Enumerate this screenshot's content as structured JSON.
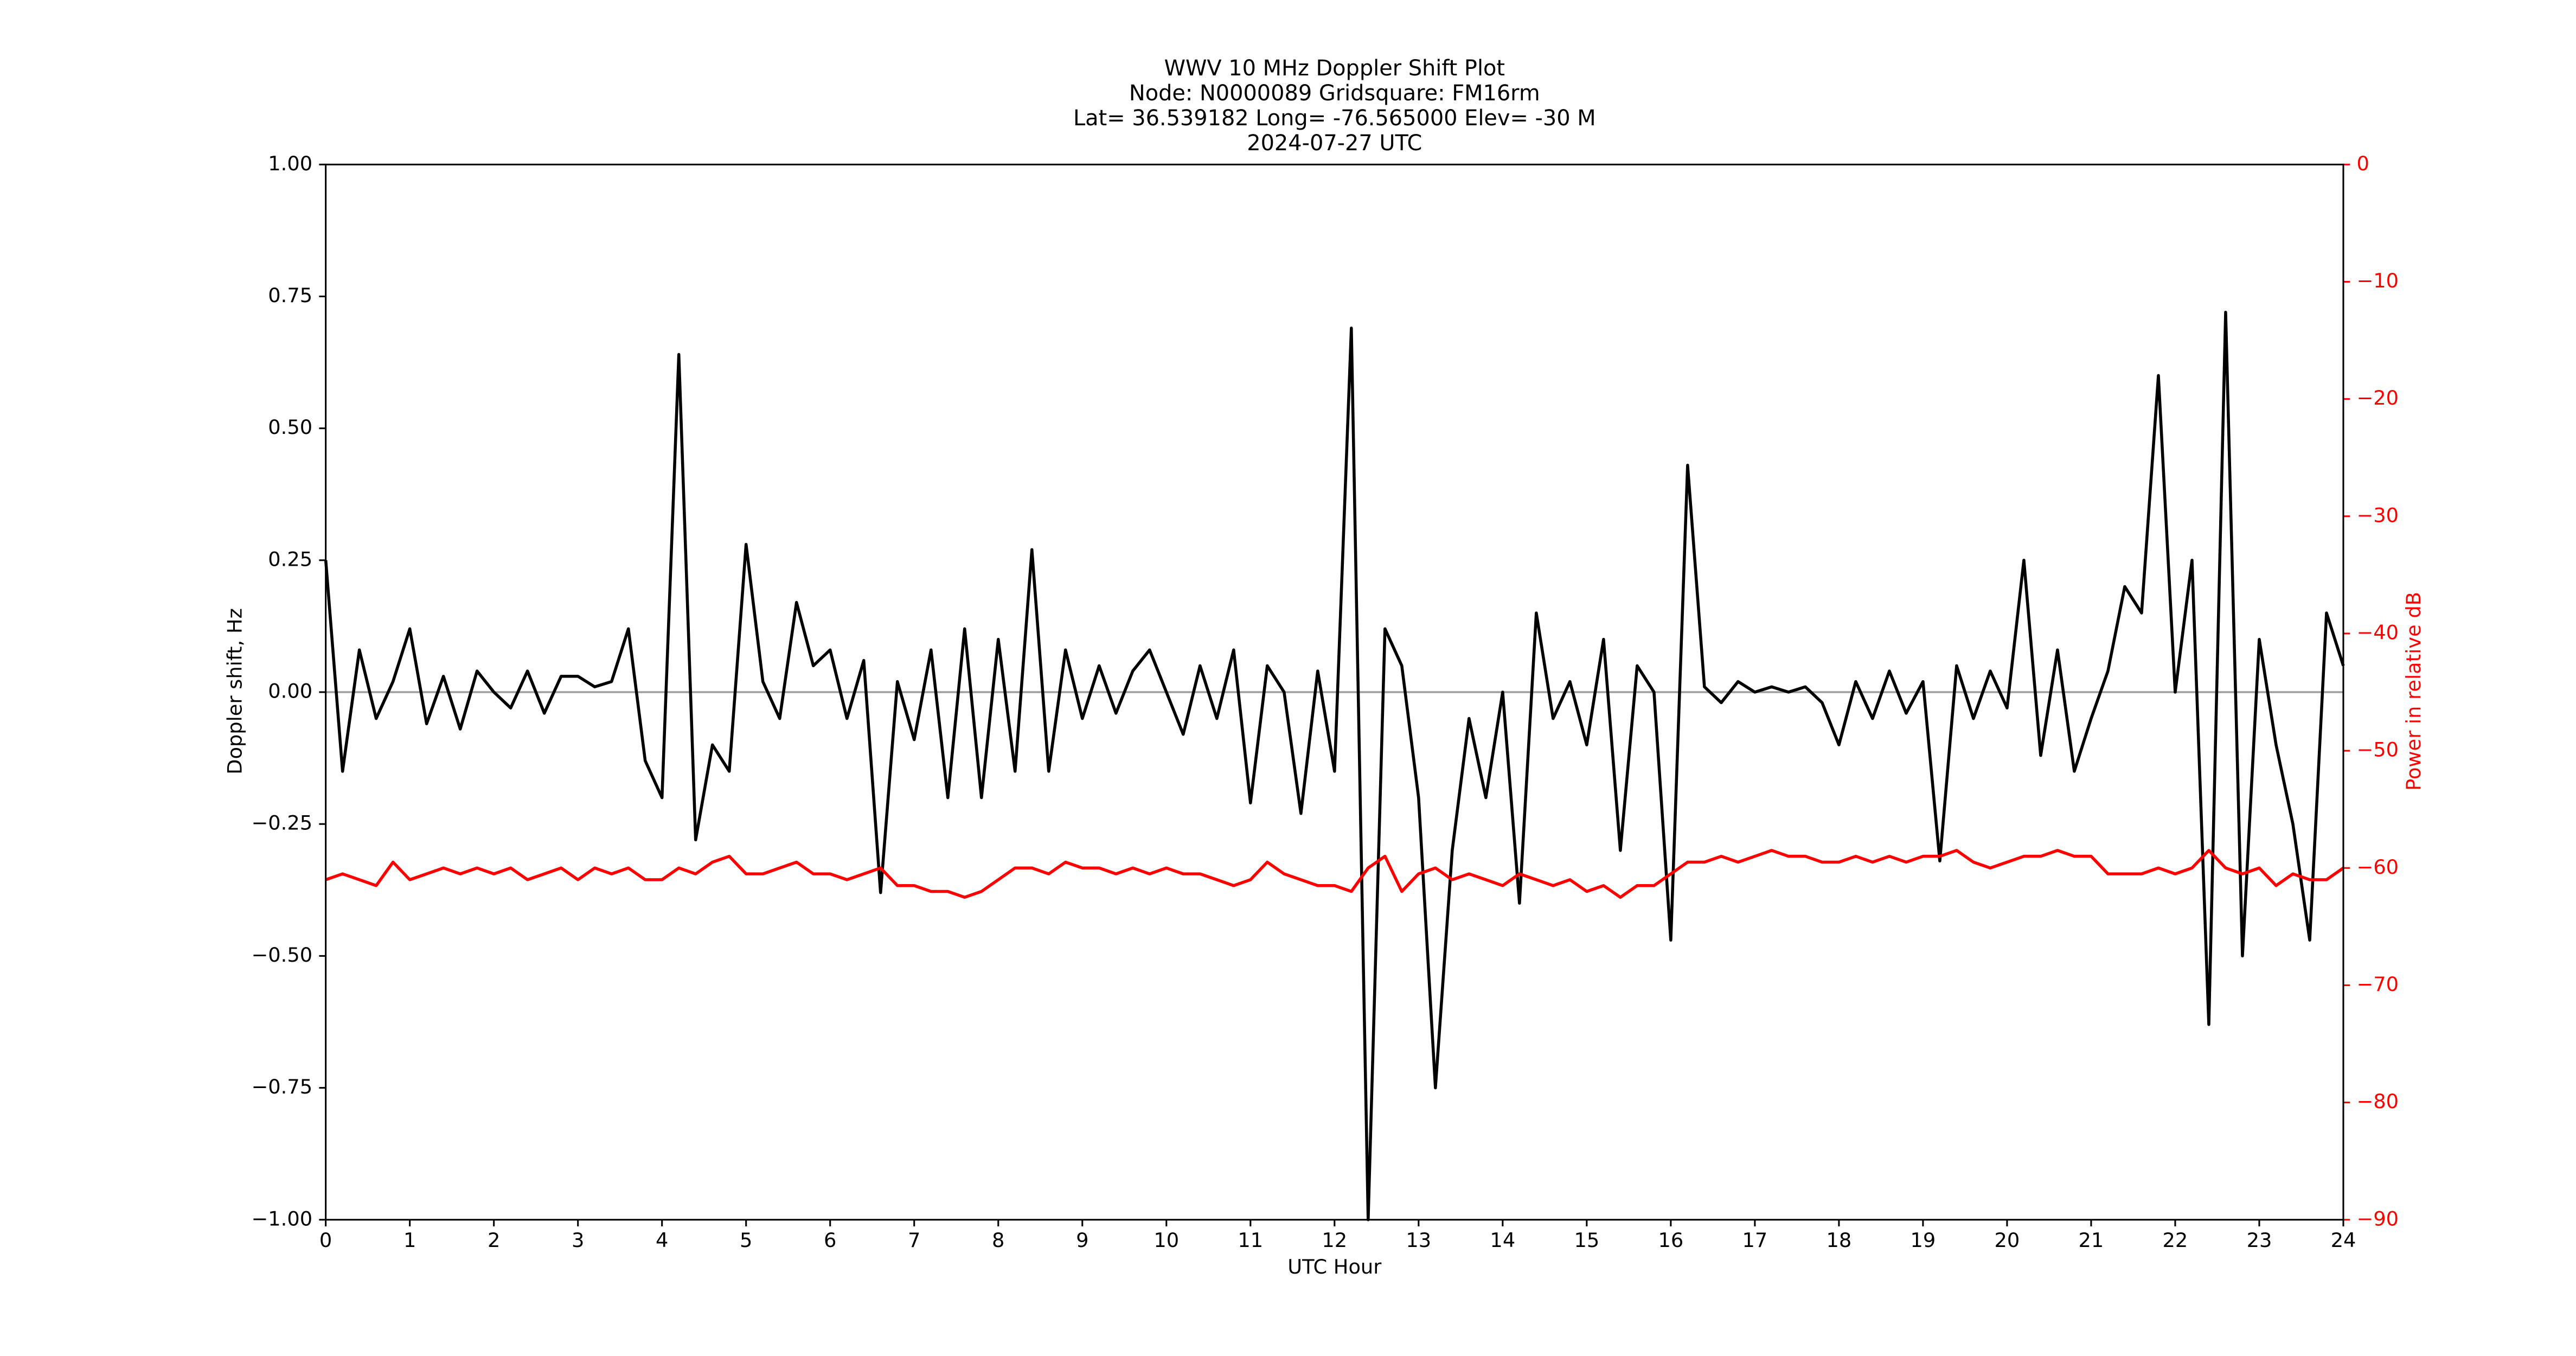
{
  "chart_data": {
    "type": "line",
    "title": [
      "WWV 10 MHz Doppler Shift Plot",
      "Node:  N0000089     Gridsquare:  FM16rm",
      "Lat= 36.539182    Long= -76.565000    Elev= -30 M",
      "2024-07-27  UTC"
    ],
    "xlabel": "UTC Hour",
    "ylabel": "Doppler shift, Hz",
    "y2label": "Power in relative dB",
    "xlim": [
      0,
      24
    ],
    "ylim": [
      -1,
      1
    ],
    "y2lim": [
      -90,
      0
    ],
    "xticks": [
      0,
      1,
      2,
      3,
      4,
      5,
      6,
      7,
      8,
      9,
      10,
      11,
      12,
      13,
      14,
      15,
      16,
      17,
      18,
      19,
      20,
      21,
      22,
      23,
      24
    ],
    "yticks": [
      {
        "value": -1,
        "label": "−1.00"
      },
      {
        "value": -0.75,
        "label": "−0.75"
      },
      {
        "value": -0.5,
        "label": "−0.50"
      },
      {
        "value": -0.25,
        "label": "−0.25"
      },
      {
        "value": 0,
        "label": "0.00"
      },
      {
        "value": 0.25,
        "label": "0.25"
      },
      {
        "value": 0.5,
        "label": "0.50"
      },
      {
        "value": 0.75,
        "label": "0.75"
      },
      {
        "value": 1,
        "label": "1.00"
      }
    ],
    "y2ticks": [
      0,
      {
        "value": -10,
        "label": "−10"
      },
      {
        "value": -20,
        "label": "−20"
      },
      {
        "value": -30,
        "label": "−30"
      },
      {
        "value": -40,
        "label": "−40"
      },
      {
        "value": -50,
        "label": "−50"
      },
      {
        "value": -60,
        "label": "−60"
      },
      {
        "value": -70,
        "label": "−70"
      },
      {
        "value": -80,
        "label": "−80"
      },
      {
        "value": -90,
        "label": "−90"
      }
    ],
    "hline": 0,
    "hline_color": "#a0a0a0",
    "y2_color": "#ff0000",
    "x": [
      0,
      0.2,
      0.4,
      0.6,
      0.8,
      1,
      1.2,
      1.4,
      1.6,
      1.8,
      2,
      2.2,
      2.4,
      2.6,
      2.8,
      3,
      3.2,
      3.4,
      3.6,
      3.8,
      4,
      4.2,
      4.4,
      4.6,
      4.8,
      5,
      5.2,
      5.4,
      5.6,
      5.8,
      6,
      6.2,
      6.4,
      6.6,
      6.8,
      7,
      7.2,
      7.4,
      7.6,
      7.8,
      8,
      8.2,
      8.4,
      8.6,
      8.8,
      9,
      9.2,
      9.4,
      9.6,
      9.8,
      10,
      10.2,
      10.4,
      10.6,
      10.8,
      11,
      11.2,
      11.4,
      11.6,
      11.8,
      12,
      12.2,
      12.4,
      12.6,
      12.8,
      13,
      13.2,
      13.4,
      13.6,
      13.8,
      14,
      14.2,
      14.4,
      14.6,
      14.8,
      15,
      15.2,
      15.4,
      15.6,
      15.8,
      16,
      16.2,
      16.4,
      16.6,
      16.8,
      17,
      17.2,
      17.4,
      17.6,
      17.8,
      18,
      18.2,
      18.4,
      18.6,
      18.8,
      19,
      19.2,
      19.4,
      19.6,
      19.8,
      20,
      20.2,
      20.4,
      20.6,
      20.8,
      21,
      21.2,
      21.4,
      21.6,
      21.8,
      22,
      22.2,
      22.4,
      22.6,
      22.8,
      23,
      23.2,
      23.4,
      23.6,
      23.8,
      24
    ],
    "series": [
      {
        "color": "#000000",
        "values": [
          0.25,
          -0.15,
          0.08,
          -0.05,
          0.02,
          0.12,
          -0.06,
          0.03,
          -0.07,
          0.04,
          0,
          -0.03,
          0.04,
          -0.04,
          0.03,
          0.03,
          0.01,
          0.02,
          0.12,
          -0.13,
          -0.2,
          0.64,
          -0.28,
          -0.1,
          -0.15,
          0.28,
          0.02,
          -0.05,
          0.17,
          0.05,
          0.08,
          -0.05,
          0.06,
          -0.38,
          0.02,
          -0.09,
          0.08,
          -0.2,
          0.12,
          -0.2,
          0.1,
          -0.15,
          0.27,
          -0.15,
          0.08,
          -0.05,
          0.05,
          -0.04,
          0.04,
          0.08,
          0,
          -0.08,
          0.05,
          -0.05,
          0.08,
          -0.21,
          0.05,
          0,
          -0.23,
          0.04,
          -0.15,
          0.69,
          -1,
          0.12,
          0.05,
          -0.2,
          -0.75,
          -0.3,
          -0.05,
          -0.2,
          0,
          -0.4,
          0.15,
          -0.05,
          0.02,
          -0.1,
          0.1,
          -0.3,
          0.05,
          0,
          -0.47,
          0.43,
          0.01,
          -0.02,
          0.02,
          0,
          0.01,
          0,
          0.01,
          -0.02,
          -0.1,
          0.02,
          -0.05,
          0.04,
          -0.04,
          0.02,
          -0.32,
          0.05,
          -0.05,
          0.04,
          -0.03,
          0.25,
          -0.12,
          0.08,
          -0.15,
          -0.05,
          0.04,
          0.2,
          0.15,
          0.6,
          0,
          0.25,
          -0.63,
          0.72,
          -0.5,
          0.1,
          -0.1,
          -0.25,
          -0.47,
          0.15,
          0.05
        ]
      },
      {
        "color": "#ff0000",
        "axis": "y2",
        "values": [
          -61,
          -60.5,
          -61,
          -61.5,
          -59.5,
          -61,
          -60.5,
          -60,
          -60.5,
          -60,
          -60.5,
          -60,
          -61,
          -60.5,
          -60,
          -61,
          -60,
          -60.5,
          -60,
          -61,
          -61,
          -60,
          -60.5,
          -59.5,
          -59,
          -60.5,
          -60.5,
          -60,
          -59.5,
          -60.5,
          -60.5,
          -61,
          -60.5,
          -60,
          -61.5,
          -61.5,
          -62,
          -62,
          -62.5,
          -62,
          -61,
          -60,
          -60,
          -60.5,
          -59.5,
          -60,
          -60,
          -60.5,
          -60,
          -60.5,
          -60,
          -60.5,
          -60.5,
          -61,
          -61.5,
          -61,
          -59.5,
          -60.5,
          -61,
          -61.5,
          -61.5,
          -62,
          -60,
          -59,
          -62,
          -60.5,
          -60,
          -61,
          -60.5,
          -61,
          -61.5,
          -60.5,
          -61,
          -61.5,
          -61,
          -62,
          -61.5,
          -62.5,
          -61.5,
          -61.5,
          -60.5,
          -59.5,
          -59.5,
          -59,
          -59.5,
          -59,
          -58.5,
          -59,
          -59,
          -59.5,
          -59.5,
          -59,
          -59.5,
          -59,
          -59.5,
          -59,
          -59,
          -58.5,
          -59.5,
          -60,
          -59.5,
          -59,
          -59,
          -58.5,
          -59,
          -59,
          -60.5,
          -60.5,
          -60.5,
          -60,
          -60.5,
          -60,
          -58.5,
          -60,
          -60.5,
          -60,
          -61.5,
          -60.5,
          -61,
          -61,
          -60
        ]
      }
    ]
  }
}
